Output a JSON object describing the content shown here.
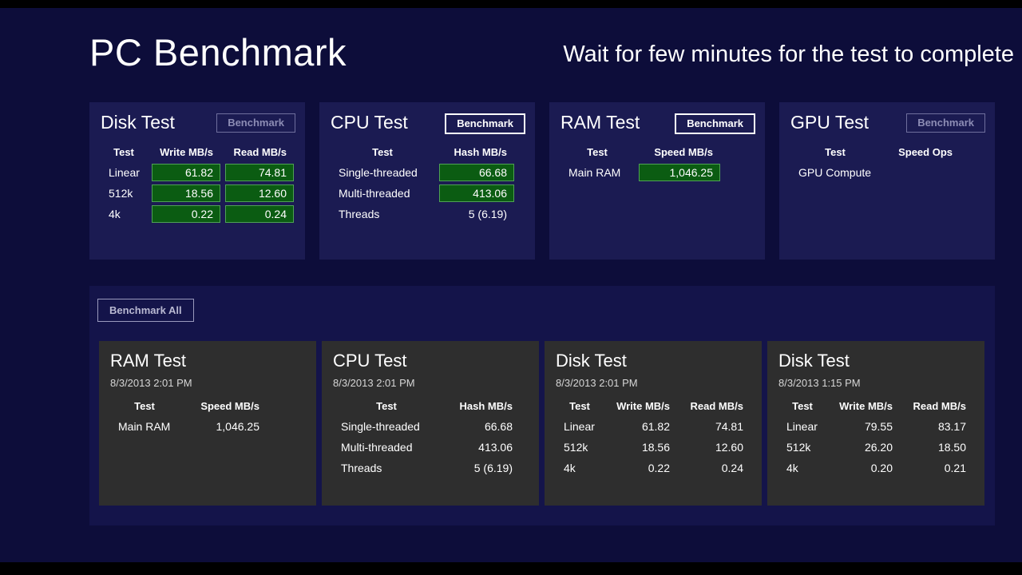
{
  "header": {
    "title": "PC Benchmark",
    "subtitle": "Wait for few minutes for the test to complete"
  },
  "colors": {
    "background": "#0d0d3a",
    "panel": "#1b1b52",
    "history_section": "#14144a",
    "history_card": "#2e2e2e",
    "value_highlight_bg": "#0b5c12",
    "value_highlight_border": "#4fa155"
  },
  "panels": {
    "disk": {
      "title": "Disk Test",
      "button": "Benchmark",
      "columns": {
        "test": "Test",
        "write": "Write MB/s",
        "read": "Read MB/s"
      },
      "rows": [
        {
          "test": "Linear",
          "write": "61.82",
          "read": "74.81"
        },
        {
          "test": "512k",
          "write": "18.56",
          "read": "12.60"
        },
        {
          "test": "4k",
          "write": "0.22",
          "read": "0.24"
        }
      ]
    },
    "cpu": {
      "title": "CPU Test",
      "button": "Benchmark",
      "columns": {
        "test": "Test",
        "hash": "Hash MB/s"
      },
      "rows": [
        {
          "test": "Single-threaded",
          "hash": "66.68"
        },
        {
          "test": "Multi-threaded",
          "hash": "413.06"
        },
        {
          "test": "Threads",
          "hash": "5 (6.19)"
        }
      ]
    },
    "ram": {
      "title": "RAM Test",
      "button": "Benchmark",
      "columns": {
        "test": "Test",
        "speed": "Speed MB/s"
      },
      "rows": [
        {
          "test": "Main RAM",
          "speed": "1,046.25"
        }
      ]
    },
    "gpu": {
      "title": "GPU Test",
      "button": "Benchmark",
      "columns": {
        "test": "Test",
        "speed": "Speed Ops"
      },
      "rows": [
        {
          "test": "GPU Compute",
          "speed": ""
        }
      ]
    }
  },
  "benchmark_all_label": "Benchmark All",
  "history": [
    {
      "title": "RAM Test",
      "date": "8/3/2013 2:01 PM",
      "columns": {
        "test": "Test",
        "v1": "Speed MB/s"
      },
      "rows": [
        {
          "test": "Main RAM",
          "v1": "1,046.25"
        }
      ]
    },
    {
      "title": "CPU Test",
      "date": "8/3/2013 2:01 PM",
      "columns": {
        "test": "Test",
        "v1": "Hash MB/s"
      },
      "rows": [
        {
          "test": "Single-threaded",
          "v1": "66.68"
        },
        {
          "test": "Multi-threaded",
          "v1": "413.06"
        },
        {
          "test": "Threads",
          "v1": "5 (6.19)"
        }
      ]
    },
    {
      "title": "Disk Test",
      "date": "8/3/2013 2:01 PM",
      "columns": {
        "test": "Test",
        "v1": "Write MB/s",
        "v2": "Read MB/s"
      },
      "rows": [
        {
          "test": "Linear",
          "v1": "61.82",
          "v2": "74.81"
        },
        {
          "test": "512k",
          "v1": "18.56",
          "v2": "12.60"
        },
        {
          "test": "4k",
          "v1": "0.22",
          "v2": "0.24"
        }
      ]
    },
    {
      "title": "Disk Test",
      "date": "8/3/2013 1:15 PM",
      "columns": {
        "test": "Test",
        "v1": "Write MB/s",
        "v2": "Read MB/s"
      },
      "rows": [
        {
          "test": "Linear",
          "v1": "79.55",
          "v2": "83.17"
        },
        {
          "test": "512k",
          "v1": "26.20",
          "v2": "18.50"
        },
        {
          "test": "4k",
          "v1": "0.20",
          "v2": "0.21"
        }
      ]
    }
  ]
}
